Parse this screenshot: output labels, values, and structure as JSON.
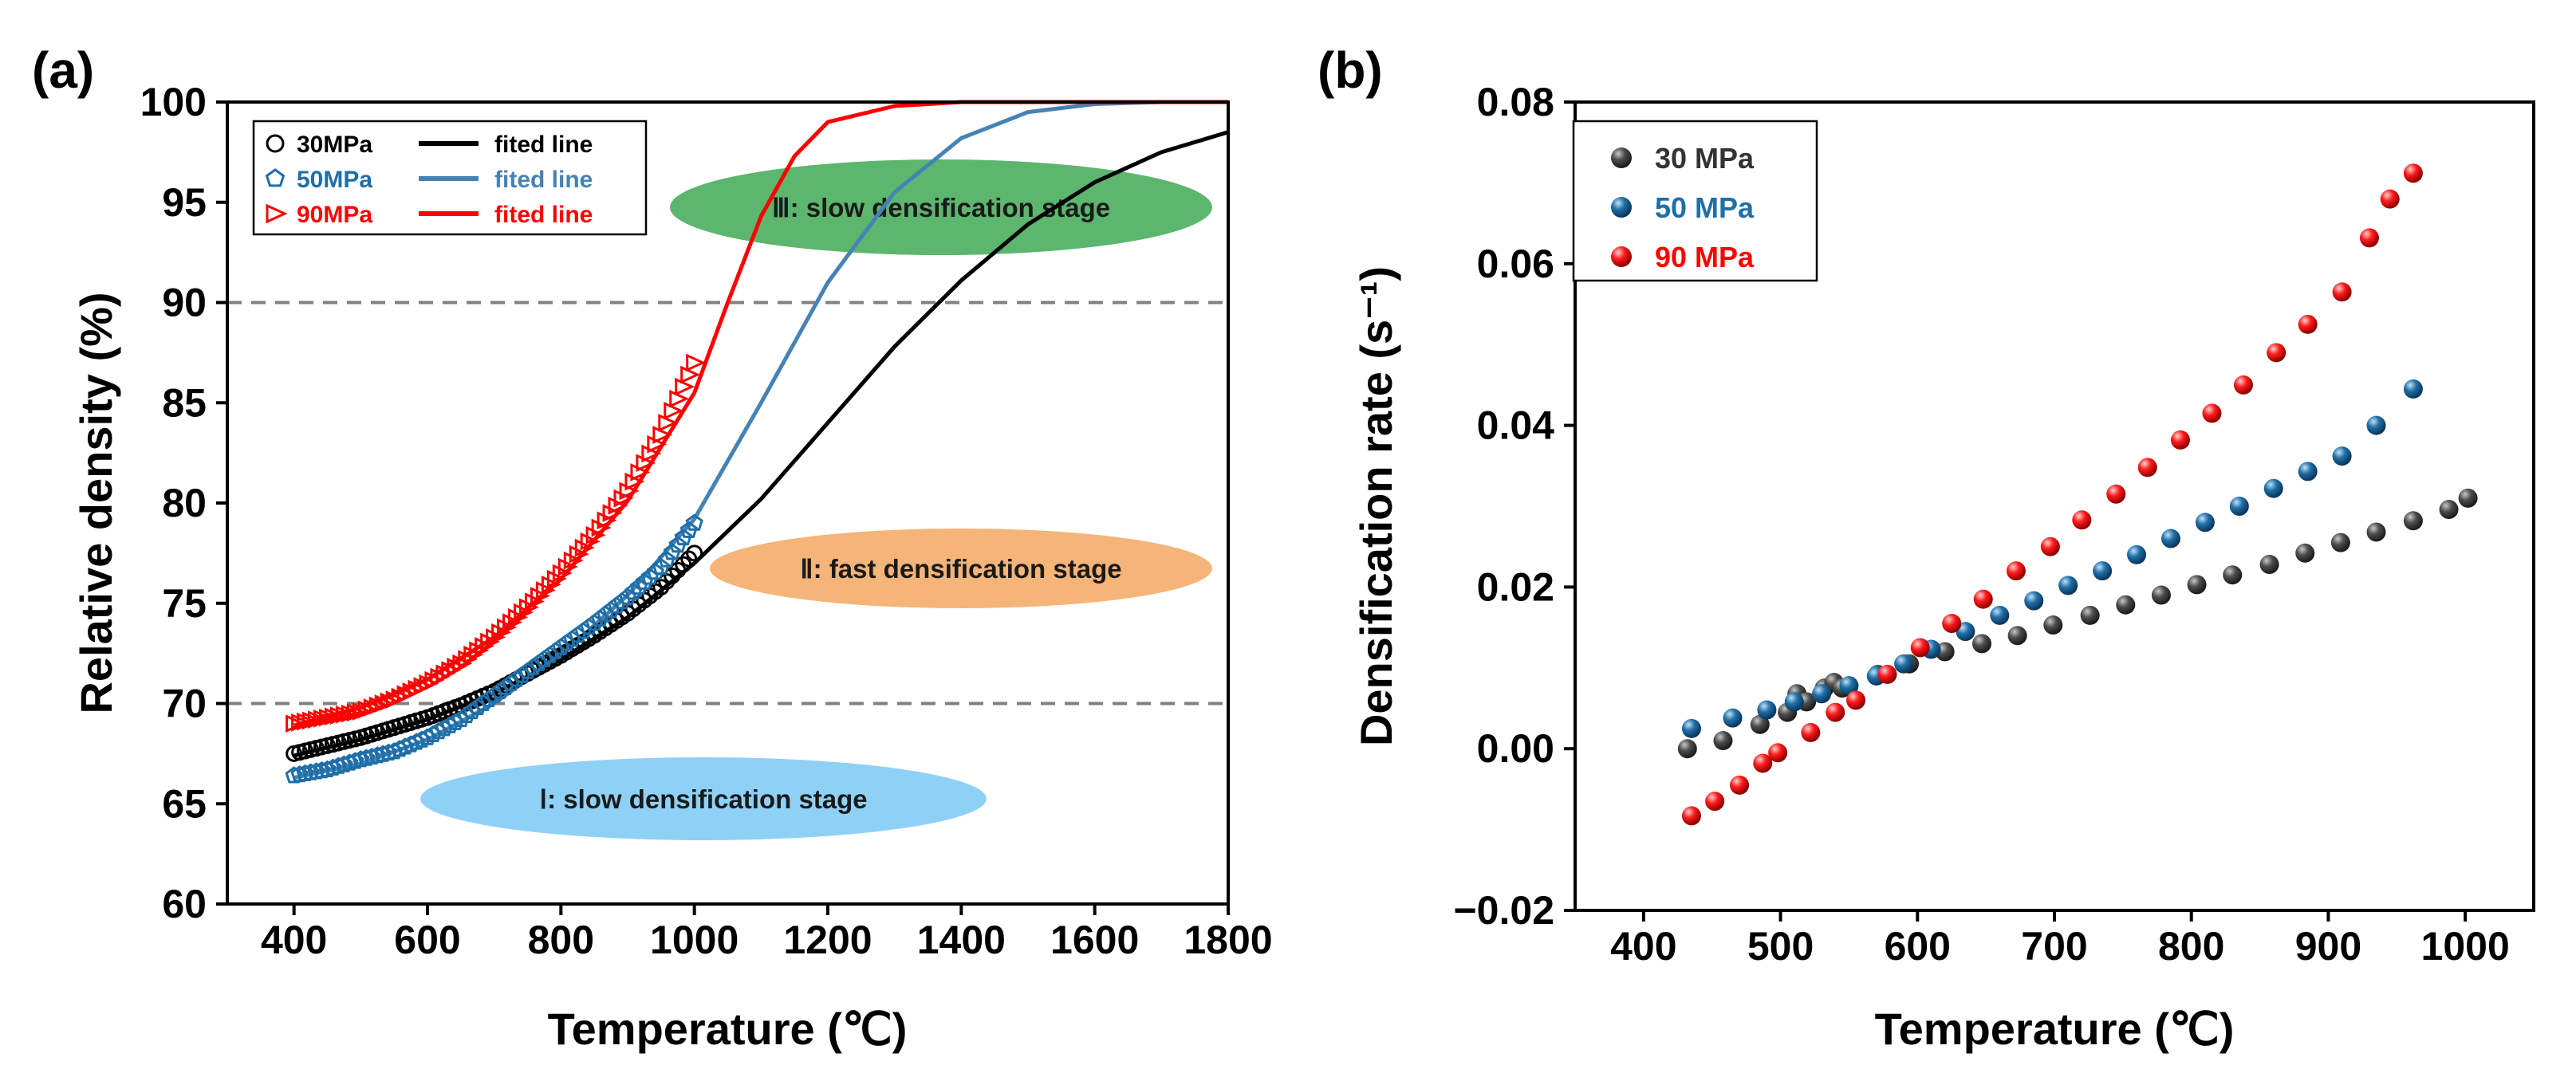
{
  "panel_a_label": "(a)",
  "panel_b_label": "(b)",
  "chart_data": [
    {
      "type": "scatter",
      "panel": "a",
      "title": "",
      "xlabel": "Temperature (℃)",
      "ylabel": "Relative density (%)",
      "xlim": [
        300,
        1800
      ],
      "ylim": [
        60,
        100
      ],
      "xticks": [
        400,
        600,
        800,
        1000,
        1200,
        1400,
        1600,
        1800
      ],
      "yticks": [
        60,
        65,
        70,
        75,
        80,
        85,
        90,
        95,
        100
      ],
      "reference_lines": [
        70,
        90
      ],
      "legend": [
        {
          "marker_label": "30MPa",
          "line_label": "fited line",
          "color": "#000000"
        },
        {
          "marker_label": "50MPa",
          "line_label": "fited line",
          "color": "#4682b4"
        },
        {
          "marker_label": "90MPa",
          "line_label": "fited line",
          "color": "#ff0000"
        }
      ],
      "stages": [
        {
          "label": "Ⅲ: slow densification stage",
          "color": "#5cb66e"
        },
        {
          "label": "Ⅱ: fast densification stage",
          "color": "#f5b478"
        },
        {
          "label": "Ⅰ: slow densification stage",
          "color": "#8fd0f7"
        }
      ],
      "series": [
        {
          "name": "30MPa",
          "marker": "circle",
          "color": "#000000",
          "x": [
            400,
            450,
            500,
            550,
            600,
            650,
            700,
            750,
            800,
            850,
            900,
            950,
            1000
          ],
          "y": [
            67.5,
            67.9,
            68.3,
            68.8,
            69.3,
            69.9,
            70.6,
            71.5,
            72.4,
            73.4,
            74.5,
            75.8,
            77.5
          ],
          "fit_x": [
            400,
            500,
            600,
            700,
            800,
            900,
            1000,
            1100,
            1200,
            1300,
            1400,
            1500,
            1600,
            1700,
            1800
          ],
          "fit_y": [
            67.4,
            68.2,
            69.2,
            70.5,
            72.2,
            74.3,
            77.0,
            80.2,
            84.0,
            87.8,
            91.1,
            93.9,
            96.0,
            97.5,
            98.5
          ]
        },
        {
          "name": "50MPa",
          "marker": "pentagon",
          "color": "#1f6fa8",
          "x": [
            400,
            450,
            500,
            550,
            600,
            650,
            700,
            750,
            800,
            850,
            900,
            950,
            1000
          ],
          "y": [
            66.4,
            66.7,
            67.2,
            67.6,
            68.3,
            69.2,
            70.4,
            71.6,
            72.8,
            74.0,
            75.3,
            76.8,
            79.0
          ],
          "fit_x": [
            400,
            500,
            600,
            700,
            800,
            900,
            1000,
            1100,
            1200,
            1300,
            1400,
            1500,
            1600,
            1700,
            1800
          ],
          "fit_y": [
            66.3,
            67.0,
            68.2,
            70.0,
            72.4,
            75.4,
            79.2,
            85.0,
            91.0,
            95.5,
            98.2,
            99.5,
            99.9,
            100.0,
            100.0
          ]
        },
        {
          "name": "90MPa",
          "marker": "triangle-right",
          "color": "#ff0000",
          "x": [
            400,
            450,
            500,
            550,
            600,
            650,
            700,
            750,
            800,
            850,
            900,
            950,
            1000
          ],
          "y": [
            69.0,
            69.3,
            69.6,
            70.2,
            71.0,
            72.0,
            73.3,
            74.8,
            76.5,
            78.4,
            80.6,
            83.4,
            87.0
          ],
          "fit_x": [
            400,
            500,
            600,
            700,
            800,
            900,
            1000,
            1050,
            1100,
            1150,
            1200,
            1300,
            1400,
            1500,
            1600,
            1800
          ],
          "fit_y": [
            68.9,
            69.8,
            71.2,
            73.3,
            76.2,
            80.1,
            85.5,
            90.0,
            94.3,
            97.3,
            99.0,
            99.8,
            100.0,
            100.0,
            100.0,
            100.0
          ]
        }
      ]
    },
    {
      "type": "scatter",
      "panel": "b",
      "title": "",
      "xlabel": "Temperature (℃)",
      "ylabel": "Densification rate (s⁻¹)",
      "xlim": [
        350,
        1050
      ],
      "ylim": [
        -0.02,
        0.08
      ],
      "xticks": [
        400,
        500,
        600,
        700,
        800,
        900,
        1000
      ],
      "yticks": [
        -0.02,
        0.0,
        0.02,
        0.04,
        0.06,
        0.08
      ],
      "ytick_labels": [
        "−0.02",
        "0.00",
        "0.02",
        "0.04",
        "0.06",
        "0.08"
      ],
      "legend_position": "top-left",
      "series": [
        {
          "name": "30 MPa",
          "color": "#4d4d4d",
          "x": [
            432,
            458,
            485,
            505,
            512,
            519,
            532,
            539,
            545,
            571,
            594,
            620,
            647,
            673,
            699,
            726,
            752,
            778,
            804,
            830,
            857,
            883,
            909,
            935,
            962,
            988,
            1002
          ],
          "y": [
            0.0,
            0.001,
            0.003,
            0.0045,
            0.0068,
            0.0058,
            0.0075,
            0.0082,
            0.0075,
            0.0092,
            0.0105,
            0.012,
            0.013,
            0.014,
            0.0153,
            0.0165,
            0.0178,
            0.019,
            0.0203,
            0.0215,
            0.0228,
            0.0242,
            0.0255,
            0.0268,
            0.0282,
            0.0296,
            0.031
          ]
        },
        {
          "name": "50 MPa",
          "color": "#1f6fa8",
          "x": [
            435,
            465,
            490,
            510,
            530,
            550,
            570,
            590,
            610,
            635,
            660,
            685,
            710,
            735,
            760,
            785,
            810,
            835,
            860,
            885,
            910,
            935,
            962
          ],
          "y": [
            0.0025,
            0.0038,
            0.0048,
            0.0058,
            0.0068,
            0.0078,
            0.009,
            0.0105,
            0.0123,
            0.0145,
            0.0165,
            0.0183,
            0.0202,
            0.022,
            0.024,
            0.026,
            0.028,
            0.03,
            0.0322,
            0.0343,
            0.0362,
            0.04,
            0.0445
          ]
        },
        {
          "name": "90 MPa",
          "color": "#ff0000",
          "x": [
            435,
            452,
            470,
            487,
            498,
            522,
            540,
            555,
            578,
            602,
            625,
            648,
            672,
            697,
            720,
            745,
            768,
            792,
            815,
            838,
            862,
            885,
            910,
            930,
            945,
            962
          ],
          "y": [
            -0.0083,
            -0.0065,
            -0.0045,
            -0.0018,
            -0.0005,
            0.002,
            0.0045,
            0.006,
            0.0092,
            0.0125,
            0.0155,
            0.0185,
            0.022,
            0.025,
            0.0283,
            0.0315,
            0.0348,
            0.0382,
            0.0415,
            0.045,
            0.049,
            0.0525,
            0.0565,
            0.0632,
            0.068,
            0.0712
          ]
        }
      ]
    }
  ]
}
